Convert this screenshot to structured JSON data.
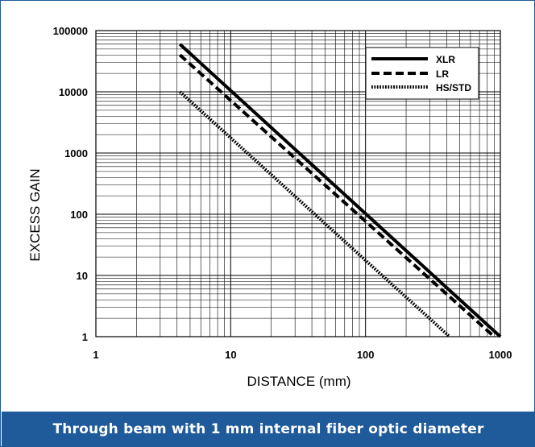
{
  "caption": "Through beam with 1 mm internal fiber optic diameter",
  "colors": {
    "accent": "#1f5a9a",
    "caption_text": "#ffffff",
    "ink": "#000000"
  },
  "chart_data": {
    "type": "line",
    "xlabel": "DISTANCE (mm)",
    "ylabel": "EXCESS GAIN",
    "xscale": "log",
    "yscale": "log",
    "xlim": [
      1,
      1000
    ],
    "ylim": [
      1,
      100000
    ],
    "xticks": [
      "1",
      "10",
      "100",
      "1000"
    ],
    "yticks": [
      "1",
      "10",
      "100",
      "1000",
      "10000",
      "100000"
    ],
    "grid": true,
    "legend_position": "top-right",
    "series": [
      {
        "name": "XLR",
        "style": "solid",
        "x": [
          4.2,
          1000
        ],
        "y": [
          60000,
          1
        ]
      },
      {
        "name": "LR",
        "style": "dashed",
        "x": [
          4.2,
          900
        ],
        "y": [
          40000,
          1
        ]
      },
      {
        "name": "HS/STD",
        "style": "dotted",
        "x": [
          4.2,
          420
        ],
        "y": [
          10000,
          1
        ]
      }
    ]
  }
}
